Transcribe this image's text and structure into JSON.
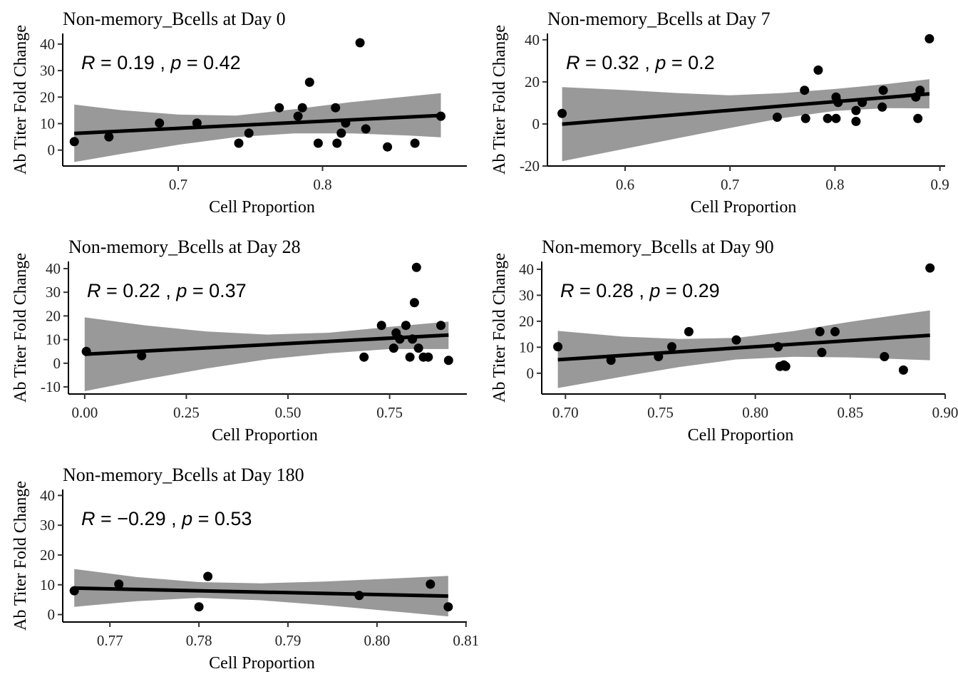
{
  "chart_data": [
    {
      "type": "scatter",
      "title": "Non-memory_Bcells at Day 0",
      "xlabel": "Cell Proportion",
      "ylabel": "Ab Titer Fold Change",
      "xticks": [
        0.7,
        0.8
      ],
      "xtick_labels": [
        "0.7",
        "0.8"
      ],
      "yticks": [
        0,
        10,
        20,
        30,
        40
      ],
      "ytick_labels": [
        "0",
        "10",
        "20",
        "30",
        "40"
      ],
      "xlim": [
        0.62,
        0.9
      ],
      "ylim": [
        -6,
        44
      ],
      "stat": {
        "R": "0.19",
        "p": "0.42"
      },
      "points": [
        [
          0.628,
          3.2
        ],
        [
          0.652,
          5
        ],
        [
          0.687,
          10.2
        ],
        [
          0.713,
          10.2
        ],
        [
          0.742,
          2.6
        ],
        [
          0.749,
          6.4
        ],
        [
          0.77,
          16
        ],
        [
          0.783,
          12.8
        ],
        [
          0.786,
          16
        ],
        [
          0.791,
          25.6
        ],
        [
          0.797,
          2.6
        ],
        [
          0.81,
          2.6
        ],
        [
          0.809,
          16
        ],
        [
          0.813,
          6.4
        ],
        [
          0.816,
          10.2
        ],
        [
          0.826,
          40.5
        ],
        [
          0.83,
          8
        ],
        [
          0.845,
          1.2
        ],
        [
          0.864,
          2.6
        ],
        [
          0.882,
          12.8
        ]
      ],
      "fit": {
        "x": [
          0.628,
          0.882
        ],
        "y": [
          6.3,
          13.1
        ]
      },
      "ci": {
        "x": [
          0.628,
          0.66,
          0.7,
          0.74,
          0.78,
          0.82,
          0.86,
          0.882
        ],
        "lower": [
          -4.5,
          -1.5,
          2.0,
          4.9,
          6.3,
          6.3,
          5.5,
          4.8
        ],
        "upper": [
          17.2,
          15.1,
          13.4,
          13.0,
          15.4,
          18.1,
          20.3,
          21.5
        ]
      }
    },
    {
      "type": "scatter",
      "title": "Non-memory_Bcells at Day 7",
      "xlabel": "Cell Proportion",
      "ylabel": "Ab Titer Fold Change",
      "xticks": [
        0.6,
        0.7,
        0.8,
        0.9
      ],
      "xtick_labels": [
        "0.6",
        "0.7",
        "0.8",
        "0.9"
      ],
      "yticks": [
        -20,
        0,
        20,
        40
      ],
      "ytick_labels": [
        "-20",
        "0",
        "20",
        "40"
      ],
      "xlim": [
        0.526,
        0.905
      ],
      "ylim": [
        -20,
        43
      ],
      "stat": {
        "R": "0.32",
        "p": "0.2"
      },
      "points": [
        [
          0.54,
          5
        ],
        [
          0.745,
          3.2
        ],
        [
          0.771,
          16
        ],
        [
          0.772,
          2.6
        ],
        [
          0.784,
          25.6
        ],
        [
          0.793,
          2.6
        ],
        [
          0.801,
          12.8
        ],
        [
          0.801,
          2.6
        ],
        [
          0.803,
          10.2
        ],
        [
          0.82,
          6.4
        ],
        [
          0.82,
          1.2
        ],
        [
          0.826,
          10.2
        ],
        [
          0.845,
          8
        ],
        [
          0.846,
          16
        ],
        [
          0.877,
          12.8
        ],
        [
          0.879,
          2.6
        ],
        [
          0.881,
          16
        ],
        [
          0.89,
          40.5
        ]
      ],
      "fit": {
        "x": [
          0.54,
          0.89
        ],
        "y": [
          -0.1,
          14.3
        ]
      },
      "ci": {
        "x": [
          0.54,
          0.6,
          0.65,
          0.7,
          0.75,
          0.8,
          0.85,
          0.89
        ],
        "lower": [
          -17.7,
          -11.8,
          -6.8,
          -1.9,
          2.8,
          6.2,
          7.5,
          7.4
        ],
        "upper": [
          17.5,
          16.1,
          14.7,
          13.6,
          14.7,
          16.6,
          19.0,
          21.3
        ]
      }
    },
    {
      "type": "scatter",
      "title": "Non-memory_Bcells at Day 28",
      "xlabel": "Cell Proportion",
      "ylabel": "Ab Titer Fold Change",
      "xticks": [
        0.0,
        0.25,
        0.5,
        0.75
      ],
      "xtick_labels": [
        "0.00",
        "0.25",
        "0.50",
        "0.75"
      ],
      "yticks": [
        -10,
        0,
        10,
        20,
        30,
        40
      ],
      "ytick_labels": [
        "-10",
        "0",
        "10",
        "20",
        "30",
        "40"
      ],
      "xlim": [
        -0.04,
        0.94
      ],
      "ylim": [
        -13,
        43
      ],
      "stat": {
        "R": "0.22",
        "p": "0.37"
      },
      "points": [
        [
          0.004,
          5
        ],
        [
          0.14,
          3.2
        ],
        [
          0.687,
          2.6
        ],
        [
          0.73,
          16
        ],
        [
          0.76,
          6.4
        ],
        [
          0.766,
          12.8
        ],
        [
          0.775,
          10.2
        ],
        [
          0.79,
          16
        ],
        [
          0.8,
          2.6
        ],
        [
          0.806,
          10.2
        ],
        [
          0.811,
          25.6
        ],
        [
          0.816,
          40.5
        ],
        [
          0.821,
          6.4
        ],
        [
          0.833,
          2.6
        ],
        [
          0.845,
          2.6
        ],
        [
          0.876,
          16
        ],
        [
          0.895,
          1.2
        ]
      ],
      "fit": {
        "x": [
          0.0,
          0.895
        ],
        "y": [
          3.8,
          11.9
        ]
      },
      "ci": {
        "x": [
          0.0,
          0.15,
          0.3,
          0.45,
          0.6,
          0.75,
          0.895
        ],
        "lower": [
          -11.8,
          -6.8,
          -2.2,
          1.7,
          4.2,
          6.0,
          6.0
        ],
        "upper": [
          19.4,
          16.0,
          13.4,
          12.1,
          12.9,
          15.4,
          17.6
        ]
      }
    },
    {
      "type": "scatter",
      "title": "Non-memory_Bcells at Day 90",
      "xlabel": "Cell Proportion",
      "ylabel": "Ab Titer Fold Change",
      "xticks": [
        0.7,
        0.75,
        0.8,
        0.85,
        0.9
      ],
      "xtick_labels": [
        "0.70",
        "0.75",
        "0.80",
        "0.85",
        "0.90"
      ],
      "yticks": [
        0,
        10,
        20,
        30,
        40
      ],
      "ytick_labels": [
        "0",
        "10",
        "20",
        "30",
        "40"
      ],
      "xlim": [
        0.6875,
        0.9
      ],
      "ylim": [
        -8,
        43
      ],
      "stat": {
        "R": "0.28",
        "p": "0.29"
      },
      "points": [
        [
          0.696,
          10.2
        ],
        [
          0.724,
          5
        ],
        [
          0.749,
          6.4
        ],
        [
          0.756,
          10.2
        ],
        [
          0.765,
          16
        ],
        [
          0.79,
          12.8
        ],
        [
          0.812,
          10.2
        ],
        [
          0.813,
          2.6
        ],
        [
          0.815,
          3.2
        ],
        [
          0.816,
          2.6
        ],
        [
          0.834,
          16
        ],
        [
          0.835,
          8
        ],
        [
          0.842,
          16
        ],
        [
          0.868,
          6.4
        ],
        [
          0.878,
          1.2
        ],
        [
          0.892,
          40.5
        ]
      ],
      "fit": {
        "x": [
          0.696,
          0.892
        ],
        "y": [
          5.2,
          14.6
        ]
      },
      "ci": {
        "x": [
          0.696,
          0.73,
          0.76,
          0.79,
          0.82,
          0.85,
          0.892
        ],
        "lower": [
          -5.7,
          -1.3,
          2.4,
          5.3,
          6.3,
          6.1,
          5.0
        ],
        "upper": [
          16.3,
          14.1,
          13.2,
          13.6,
          16.2,
          19.8,
          24.2
        ]
      }
    },
    {
      "type": "scatter",
      "title": "Non-memory_Bcells at Day 180",
      "xlabel": "Cell Proportion",
      "ylabel": "Ab Titer Fold Change",
      "xticks": [
        0.77,
        0.78,
        0.79,
        0.8,
        0.81
      ],
      "xtick_labels": [
        "0.77",
        "0.78",
        "0.79",
        "0.80",
        "0.81"
      ],
      "yticks": [
        0,
        10,
        20,
        30,
        40
      ],
      "ytick_labels": [
        "0",
        "10",
        "20",
        "30",
        "40"
      ],
      "xlim": [
        0.7647,
        0.8101
      ],
      "ylim": [
        -2.5,
        42
      ],
      "stat": {
        "R": "−0.29",
        "p": "0.53"
      },
      "points": [
        [
          0.766,
          8
        ],
        [
          0.771,
          10.2
        ],
        [
          0.78,
          2.6
        ],
        [
          0.781,
          12.8
        ],
        [
          0.798,
          6.4
        ],
        [
          0.806,
          10.2
        ],
        [
          0.808,
          2.6
        ]
      ],
      "fit": {
        "x": [
          0.766,
          0.808
        ],
        "y": [
          8.9,
          6.2
        ]
      },
      "ci": {
        "x": [
          0.766,
          0.773,
          0.78,
          0.787,
          0.794,
          0.801,
          0.808
        ],
        "lower": [
          2.6,
          4.5,
          5.6,
          4.8,
          3.2,
          1.3,
          -0.6
        ],
        "upper": [
          15.3,
          12.6,
          10.9,
          10.5,
          11.1,
          12.0,
          13.0
        ]
      }
    }
  ]
}
